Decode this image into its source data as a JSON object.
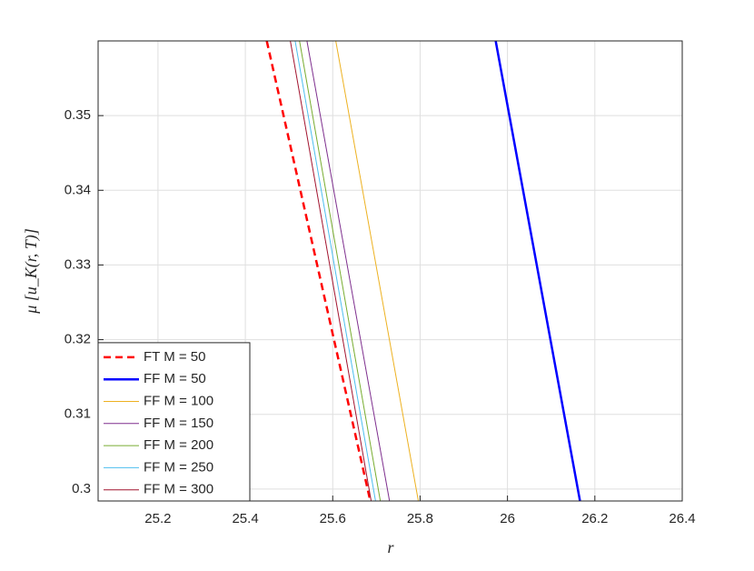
{
  "chart_data": {
    "type": "line",
    "x_label": "r",
    "y_label": "μ [u_K(r, T)]",
    "xlim": [
      25.063,
      26.4
    ],
    "ylim": [
      0.2984,
      0.36
    ],
    "xticks": [
      25.2,
      25.4,
      25.6,
      25.8,
      26,
      26.2,
      26.4
    ],
    "yticks": [
      0.3,
      0.31,
      0.32,
      0.33,
      0.34,
      0.35
    ],
    "grid": true,
    "legend": "southwest",
    "series": [
      {
        "name": "FT M = 50",
        "color": "#ff0000",
        "width": 2.5,
        "dashed": true,
        "x": [
          25.449,
          25.686
        ],
        "values": [
          0.36,
          0.2984
        ]
      },
      {
        "name": "FF M = 50",
        "color": "#0000ff",
        "width": 2.5,
        "dashed": false,
        "x": [
          25.973,
          26.166
        ],
        "values": [
          0.36,
          0.2984
        ]
      },
      {
        "name": "FF M = 100",
        "color": "#edb120",
        "width": 1,
        "dashed": false,
        "x": [
          25.607,
          25.796
        ],
        "values": [
          0.36,
          0.2984
        ]
      },
      {
        "name": "FF M = 150",
        "color": "#7e2f8e",
        "width": 1,
        "dashed": false,
        "x": [
          25.541,
          25.73
        ],
        "values": [
          0.36,
          0.2984
        ]
      },
      {
        "name": "FF M = 200",
        "color": "#77ac30",
        "width": 1,
        "dashed": false,
        "x": [
          25.524,
          25.709
        ],
        "values": [
          0.36,
          0.2984
        ]
      },
      {
        "name": "FF M = 250",
        "color": "#4dbeee",
        "width": 1,
        "dashed": false,
        "x": [
          25.514,
          25.698
        ],
        "values": [
          0.36,
          0.2984
        ]
      },
      {
        "name": "FF M = 300",
        "color": "#a2142f",
        "width": 1,
        "dashed": false,
        "x": [
          25.503,
          25.688
        ],
        "values": [
          0.36,
          0.2984
        ]
      }
    ]
  }
}
